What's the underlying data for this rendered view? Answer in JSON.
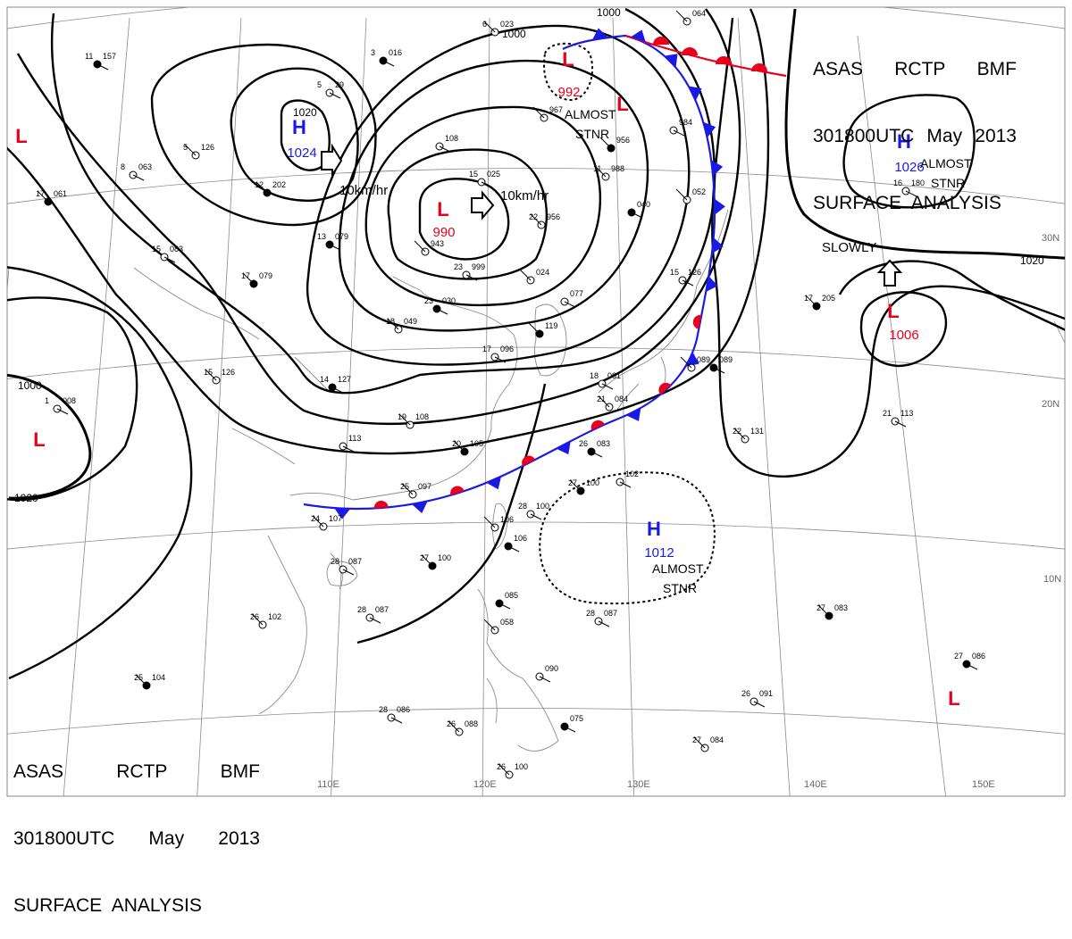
{
  "header": {
    "line1": [
      "ASAS",
      "RCTP",
      "BMF"
    ],
    "line2": [
      "301800UTC",
      "May",
      "2013"
    ],
    "line3": "SURFACE  ANALYSIS"
  },
  "colors": {
    "low": "#e8001c",
    "high": "#1a1ae6",
    "warm_front": "#e8001c",
    "cold_front": "#1a1ae6",
    "isobar": "#000000",
    "grid": "#8c8c8c",
    "coast": "#8c8c8c"
  },
  "pressure_centers": [
    {
      "type": "H",
      "value": "1024",
      "icon": "high-pressure-icon"
    },
    {
      "type": "L",
      "value": "990",
      "icon": "low-pressure-icon"
    },
    {
      "type": "L",
      "value": "992",
      "icon": "low-pressure-icon"
    },
    {
      "type": "H",
      "value": "1026",
      "icon": "high-pressure-icon"
    },
    {
      "type": "L",
      "value": "1006",
      "icon": "low-pressure-icon"
    },
    {
      "type": "H",
      "value": "1012",
      "icon": "high-pressure-icon"
    },
    {
      "type": "L",
      "value": "",
      "icon": "low-pressure-icon"
    },
    {
      "type": "L",
      "value": "",
      "icon": "low-pressure-icon"
    },
    {
      "type": "L",
      "value": "",
      "icon": "low-pressure-icon"
    },
    {
      "type": "L",
      "value": "",
      "icon": "low-pressure-icon"
    }
  ],
  "movement_labels": [
    "10km/hr",
    "10km/hr",
    "SLOWLY"
  ],
  "stationary_labels": [
    [
      "ALMOST",
      "STNR"
    ],
    [
      "ALMOST",
      "STNR"
    ],
    [
      "ALMOST",
      "STNR"
    ]
  ],
  "isobar_labels": [
    "1020",
    "1000",
    "1000",
    "1020",
    "1000",
    "1020"
  ],
  "lat_labels": [
    "30N",
    "20N",
    "10N"
  ],
  "lon_labels": [
    "110E",
    "120E",
    "130E",
    "140E",
    "150E"
  ],
  "stations": [
    {
      "temp": "11",
      "pres": "157"
    },
    {
      "temp": "5",
      "pres": "126"
    },
    {
      "temp": "8",
      "pres": "063"
    },
    {
      "temp": "17",
      "pres": "061"
    },
    {
      "temp": "5",
      "pres": "29"
    },
    {
      "temp": "6",
      "pres": "023"
    },
    {
      "temp": "3",
      "pres": "016"
    },
    {
      "temp": "",
      "pres": "967"
    },
    {
      "temp": "",
      "pres": "108"
    },
    {
      "temp": "12",
      "pres": "202"
    },
    {
      "temp": "15",
      "pres": "025"
    },
    {
      "temp": "22",
      "pres": "956"
    },
    {
      "temp": "13",
      "pres": "079"
    },
    {
      "temp": "",
      "pres": "943"
    },
    {
      "temp": "15",
      "pres": "083"
    },
    {
      "temp": "17",
      "pres": "079"
    },
    {
      "temp": "23",
      "pres": "999"
    },
    {
      "temp": "",
      "pres": "024"
    },
    {
      "temp": "23",
      "pres": "030"
    },
    {
      "temp": "18",
      "pres": "049"
    },
    {
      "temp": "",
      "pres": "077"
    },
    {
      "temp": "",
      "pres": "119"
    },
    {
      "temp": "17",
      "pres": "096"
    },
    {
      "temp": "15",
      "pres": "126"
    },
    {
      "temp": "14",
      "pres": "127"
    },
    {
      "temp": "19",
      "pres": "108"
    },
    {
      "temp": "",
      "pres": "113"
    },
    {
      "temp": "20",
      "pres": "105"
    },
    {
      "temp": "18",
      "pres": "081"
    },
    {
      "temp": "21",
      "pres": "084"
    },
    {
      "temp": "26",
      "pres": "083"
    },
    {
      "temp": "25",
      "pres": "097"
    },
    {
      "temp": "",
      "pres": "102"
    },
    {
      "temp": "27",
      "pres": "100"
    },
    {
      "temp": "28",
      "pres": "100"
    },
    {
      "temp": "",
      "pres": "106"
    },
    {
      "temp": "",
      "pres": "106"
    },
    {
      "temp": "24",
      "pres": "107"
    },
    {
      "temp": "28",
      "pres": "087"
    },
    {
      "temp": "27",
      "pres": "100"
    },
    {
      "temp": "28",
      "pres": "087"
    },
    {
      "temp": "26",
      "pres": "102"
    },
    {
      "temp": "",
      "pres": "085"
    },
    {
      "temp": "",
      "pres": "058"
    },
    {
      "temp": "",
      "pres": "090"
    },
    {
      "temp": "25",
      "pres": "104"
    },
    {
      "temp": "28",
      "pres": "086"
    },
    {
      "temp": "26",
      "pres": "088"
    },
    {
      "temp": "",
      "pres": "075"
    },
    {
      "temp": "26",
      "pres": "100"
    },
    {
      "temp": "28",
      "pres": "087"
    },
    {
      "temp": "27",
      "pres": "083"
    },
    {
      "temp": "26",
      "pres": "091"
    },
    {
      "temp": "27",
      "pres": "084"
    },
    {
      "temp": "27",
      "pres": "086"
    },
    {
      "temp": "22",
      "pres": "131"
    },
    {
      "temp": "21",
      "pres": "113"
    },
    {
      "temp": "17",
      "pres": "205"
    },
    {
      "temp": "16",
      "pres": "180"
    },
    {
      "temp": "",
      "pres": "052"
    },
    {
      "temp": "",
      "pres": "040"
    },
    {
      "temp": "11",
      "pres": "988"
    },
    {
      "temp": "",
      "pres": "984"
    },
    {
      "temp": "",
      "pres": "956"
    },
    {
      "temp": "15",
      "pres": "126"
    },
    {
      "temp": "",
      "pres": "089"
    },
    {
      "temp": "",
      "pres": "089"
    },
    {
      "temp": "",
      "pres": "064"
    },
    {
      "temp": "1",
      "pres": "008"
    }
  ]
}
